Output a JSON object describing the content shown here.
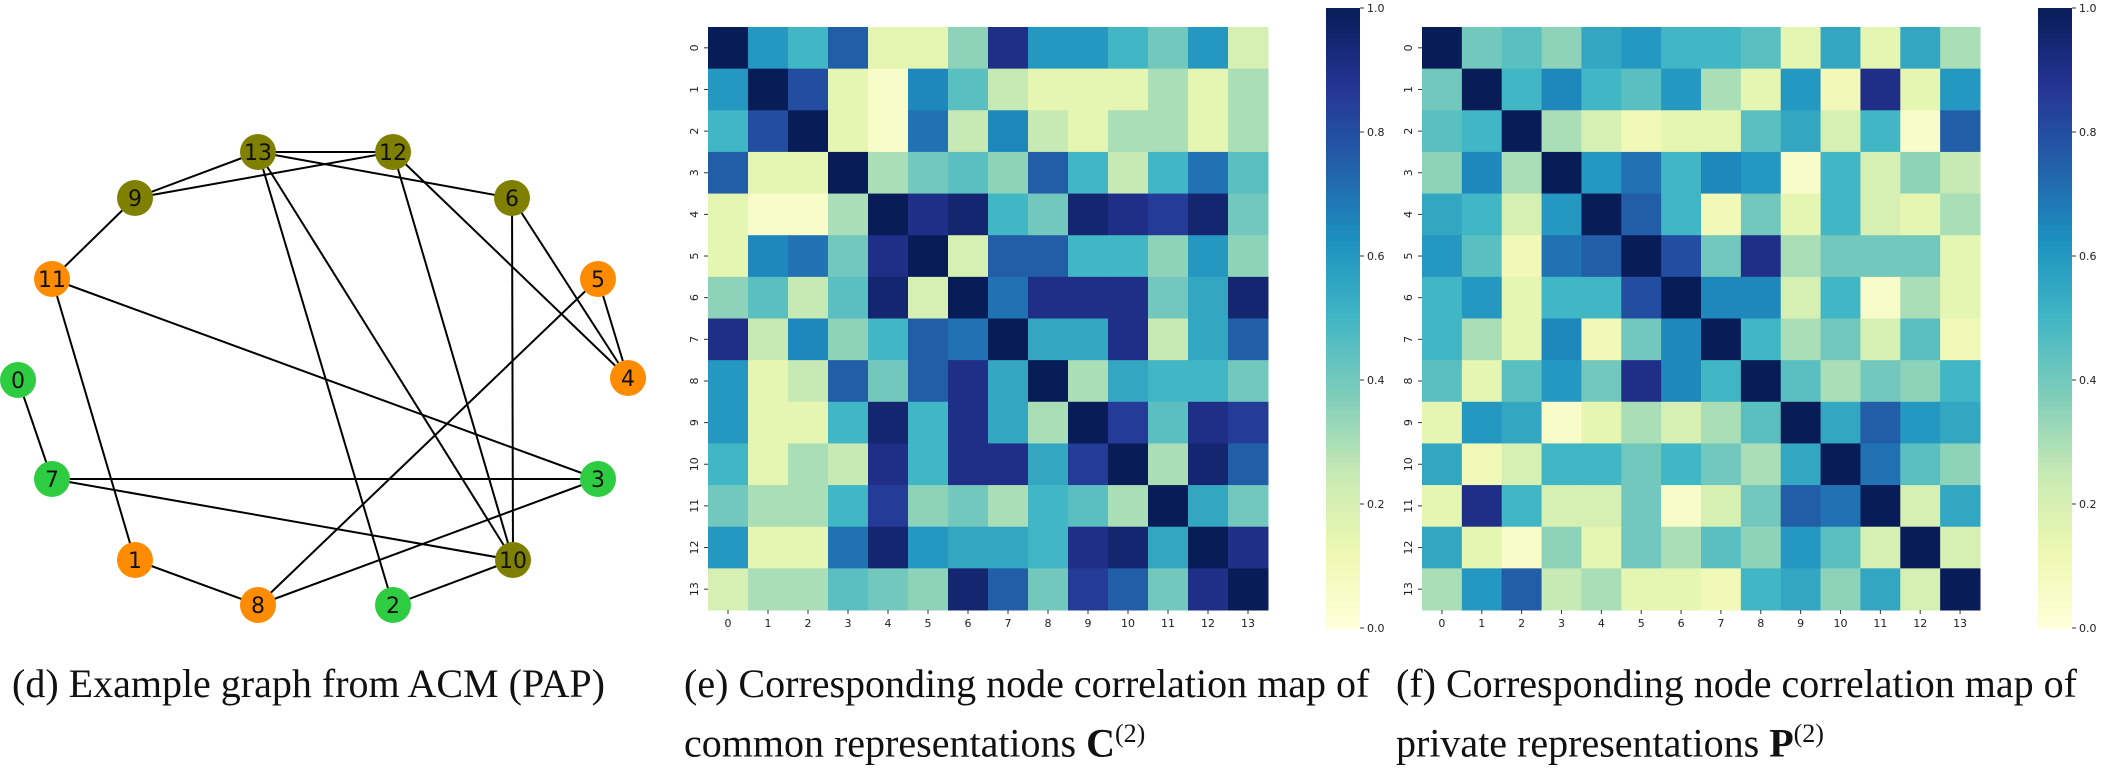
{
  "colors": {
    "common": "#2ecc40",
    "orange": "#ff8c00",
    "olive": "#808000",
    "edge": "#000000"
  },
  "captions": {
    "d": {
      "tag": "(d)",
      "line1": "Example graph from ACM (PAP)",
      "line2": ""
    },
    "e": {
      "tag": "(e)",
      "line1": "Corresponding node correlation map of",
      "line2": "common representations ",
      "symbol": "C",
      "sup": "(2)"
    },
    "f": {
      "tag": "(f)",
      "line1": "Corresponding node correlation map of",
      "line2": "private representations ",
      "symbol": "P",
      "sup": "(2)"
    }
  },
  "chart_data": [
    {
      "type": "graph",
      "nodes": [
        {
          "id": "0",
          "group": "green"
        },
        {
          "id": "1",
          "group": "orange"
        },
        {
          "id": "2",
          "group": "green"
        },
        {
          "id": "3",
          "group": "green"
        },
        {
          "id": "4",
          "group": "orange"
        },
        {
          "id": "5",
          "group": "orange"
        },
        {
          "id": "6",
          "group": "olive"
        },
        {
          "id": "7",
          "group": "green"
        },
        {
          "id": "8",
          "group": "orange"
        },
        {
          "id": "9",
          "group": "olive"
        },
        {
          "id": "10",
          "group": "olive"
        },
        {
          "id": "11",
          "group": "orange"
        },
        {
          "id": "12",
          "group": "olive"
        },
        {
          "id": "13",
          "group": "olive"
        }
      ],
      "edges": [
        [
          "9",
          "13"
        ],
        [
          "9",
          "12"
        ],
        [
          "13",
          "12"
        ],
        [
          "13",
          "6"
        ],
        [
          "13",
          "10"
        ],
        [
          "13",
          "2"
        ],
        [
          "12",
          "4"
        ],
        [
          "12",
          "10"
        ],
        [
          "6",
          "4"
        ],
        [
          "6",
          "10"
        ],
        [
          "5",
          "4"
        ],
        [
          "5",
          "8"
        ],
        [
          "11",
          "9"
        ],
        [
          "11",
          "1"
        ],
        [
          "11",
          "3"
        ],
        [
          "0",
          "7"
        ],
        [
          "7",
          "3"
        ],
        [
          "7",
          "10"
        ],
        [
          "1",
          "8"
        ],
        [
          "8",
          "3"
        ],
        [
          "2",
          "10"
        ]
      ]
    },
    {
      "type": "heatmap",
      "labels": [
        "0",
        "1",
        "2",
        "3",
        "4",
        "5",
        "6",
        "7",
        "8",
        "9",
        "10",
        "11",
        "12",
        "13"
      ],
      "colorbar_ticks": [
        "0.0",
        "0.2",
        "0.4",
        "0.6",
        "0.8",
        "1.0"
      ],
      "vmin": 0,
      "vmax": 1,
      "values": [
        [
          1.0,
          0.6,
          0.5,
          0.75,
          0.15,
          0.15,
          0.35,
          0.9,
          0.6,
          0.6,
          0.5,
          0.4,
          0.6,
          0.2
        ],
        [
          0.6,
          1.0,
          0.8,
          0.15,
          0.05,
          0.65,
          0.45,
          0.25,
          0.15,
          0.15,
          0.15,
          0.3,
          0.15,
          0.3
        ],
        [
          0.5,
          0.8,
          1.0,
          0.15,
          0.05,
          0.7,
          0.25,
          0.65,
          0.25,
          0.15,
          0.3,
          0.3,
          0.15,
          0.3
        ],
        [
          0.75,
          0.15,
          0.15,
          1.0,
          0.3,
          0.4,
          0.45,
          0.35,
          0.75,
          0.5,
          0.25,
          0.5,
          0.7,
          0.45
        ],
        [
          0.15,
          0.05,
          0.05,
          0.3,
          1.0,
          0.9,
          0.95,
          0.5,
          0.4,
          0.95,
          0.9,
          0.85,
          0.95,
          0.4
        ],
        [
          0.15,
          0.65,
          0.7,
          0.4,
          0.9,
          1.0,
          0.2,
          0.75,
          0.75,
          0.5,
          0.5,
          0.35,
          0.6,
          0.35
        ],
        [
          0.35,
          0.45,
          0.25,
          0.45,
          0.95,
          0.2,
          1.0,
          0.7,
          0.9,
          0.9,
          0.9,
          0.4,
          0.55,
          0.95
        ],
        [
          0.9,
          0.25,
          0.65,
          0.35,
          0.5,
          0.75,
          0.7,
          1.0,
          0.55,
          0.55,
          0.9,
          0.25,
          0.55,
          0.75
        ],
        [
          0.6,
          0.15,
          0.25,
          0.75,
          0.4,
          0.75,
          0.9,
          0.55,
          1.0,
          0.3,
          0.55,
          0.5,
          0.5,
          0.4
        ],
        [
          0.6,
          0.15,
          0.15,
          0.5,
          0.95,
          0.5,
          0.9,
          0.55,
          0.3,
          1.0,
          0.85,
          0.45,
          0.9,
          0.85
        ],
        [
          0.5,
          0.15,
          0.3,
          0.25,
          0.9,
          0.5,
          0.9,
          0.9,
          0.55,
          0.85,
          1.0,
          0.3,
          0.95,
          0.75
        ],
        [
          0.4,
          0.3,
          0.3,
          0.5,
          0.85,
          0.35,
          0.4,
          0.3,
          0.5,
          0.45,
          0.3,
          1.0,
          0.55,
          0.4
        ],
        [
          0.6,
          0.15,
          0.15,
          0.7,
          0.95,
          0.6,
          0.55,
          0.55,
          0.5,
          0.9,
          0.95,
          0.55,
          1.0,
          0.9
        ],
        [
          0.2,
          0.3,
          0.3,
          0.45,
          0.4,
          0.35,
          0.95,
          0.75,
          0.4,
          0.85,
          0.75,
          0.4,
          0.9,
          1.0
        ]
      ]
    },
    {
      "type": "heatmap",
      "labels": [
        "0",
        "1",
        "2",
        "3",
        "4",
        "5",
        "6",
        "7",
        "8",
        "9",
        "10",
        "11",
        "12",
        "13"
      ],
      "colorbar_ticks": [
        "0.0",
        "0.2",
        "0.4",
        "0.6",
        "0.8",
        "1.0"
      ],
      "vmin": 0,
      "vmax": 1,
      "values": [
        [
          1.0,
          0.4,
          0.45,
          0.35,
          0.55,
          0.6,
          0.5,
          0.5,
          0.45,
          0.15,
          0.55,
          0.15,
          0.55,
          0.3
        ],
        [
          0.4,
          1.0,
          0.5,
          0.65,
          0.5,
          0.45,
          0.6,
          0.3,
          0.15,
          0.6,
          0.1,
          0.9,
          0.15,
          0.6
        ],
        [
          0.45,
          0.5,
          1.0,
          0.3,
          0.2,
          0.1,
          0.15,
          0.15,
          0.45,
          0.55,
          0.2,
          0.5,
          0.05,
          0.75
        ],
        [
          0.35,
          0.65,
          0.3,
          1.0,
          0.6,
          0.7,
          0.5,
          0.65,
          0.6,
          0.05,
          0.5,
          0.2,
          0.35,
          0.25
        ],
        [
          0.55,
          0.5,
          0.2,
          0.6,
          1.0,
          0.75,
          0.5,
          0.1,
          0.4,
          0.15,
          0.5,
          0.2,
          0.15,
          0.3
        ],
        [
          0.6,
          0.45,
          0.1,
          0.7,
          0.75,
          1.0,
          0.8,
          0.4,
          0.9,
          0.3,
          0.4,
          0.4,
          0.4,
          0.15
        ],
        [
          0.5,
          0.6,
          0.15,
          0.5,
          0.5,
          0.8,
          1.0,
          0.65,
          0.65,
          0.2,
          0.5,
          0.05,
          0.3,
          0.15
        ],
        [
          0.5,
          0.3,
          0.15,
          0.65,
          0.1,
          0.4,
          0.65,
          1.0,
          0.5,
          0.3,
          0.4,
          0.2,
          0.45,
          0.1
        ],
        [
          0.45,
          0.15,
          0.45,
          0.6,
          0.4,
          0.9,
          0.65,
          0.5,
          1.0,
          0.45,
          0.3,
          0.4,
          0.35,
          0.5
        ],
        [
          0.15,
          0.6,
          0.55,
          0.05,
          0.15,
          0.3,
          0.2,
          0.3,
          0.45,
          1.0,
          0.55,
          0.75,
          0.6,
          0.55
        ],
        [
          0.55,
          0.1,
          0.2,
          0.5,
          0.5,
          0.4,
          0.5,
          0.4,
          0.3,
          0.55,
          1.0,
          0.7,
          0.45,
          0.35
        ],
        [
          0.15,
          0.9,
          0.5,
          0.2,
          0.2,
          0.4,
          0.05,
          0.2,
          0.4,
          0.75,
          0.7,
          1.0,
          0.2,
          0.55
        ],
        [
          0.55,
          0.15,
          0.05,
          0.35,
          0.15,
          0.4,
          0.3,
          0.45,
          0.35,
          0.6,
          0.45,
          0.2,
          1.0,
          0.2
        ],
        [
          0.3,
          0.6,
          0.75,
          0.25,
          0.3,
          0.15,
          0.15,
          0.1,
          0.5,
          0.55,
          0.35,
          0.55,
          0.2,
          1.0
        ]
      ]
    }
  ]
}
